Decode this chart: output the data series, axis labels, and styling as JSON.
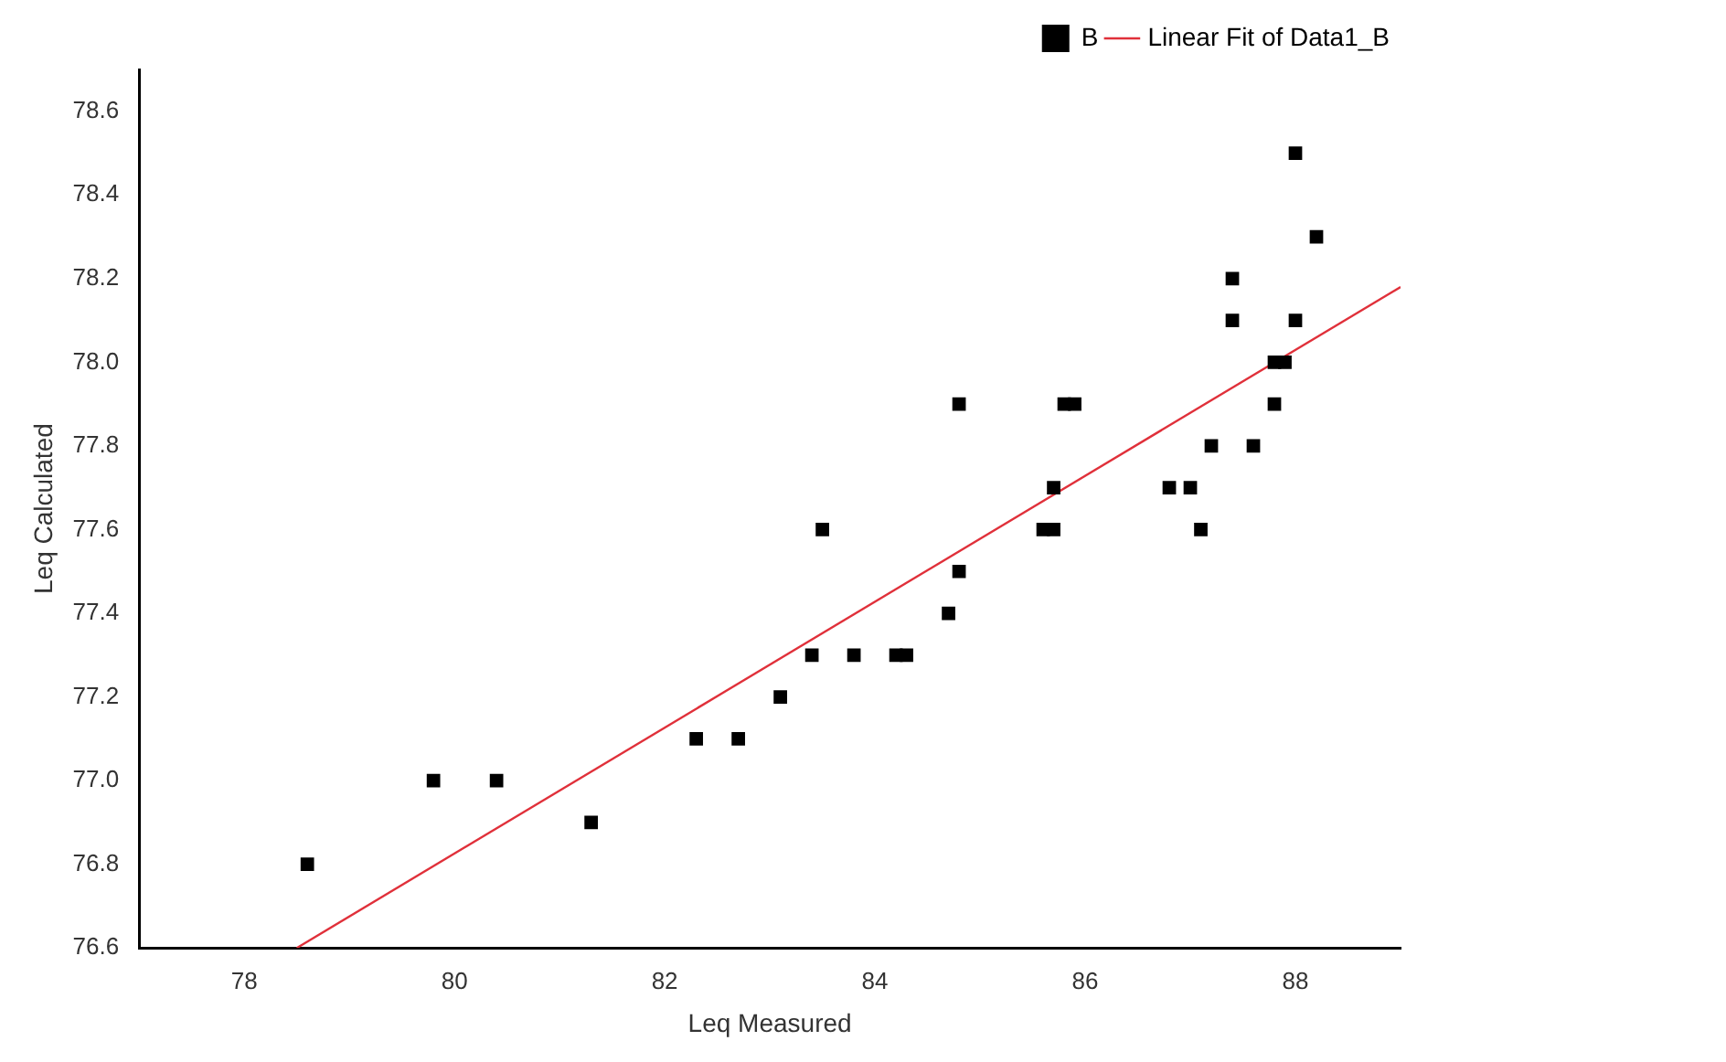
{
  "chart_data": {
    "type": "scatter",
    "xlabel": "Leq Measured",
    "ylabel": "Leq Calculated",
    "xlim": [
      77,
      89
    ],
    "xticks": [
      78,
      80,
      82,
      84,
      86,
      88
    ],
    "ylim": [
      76.6,
      78.7
    ],
    "yticks": [
      76.6,
      76.8,
      {
        "value": 77,
        "label": "77.0"
      },
      77.2,
      77.4,
      77.6,
      77.8,
      {
        "value": 78,
        "label": "78.0"
      },
      78.2,
      78.4,
      78.6
    ],
    "grid": false,
    "legend": "top right",
    "series": [
      {
        "name": "B",
        "color": "#000000",
        "marker": "square",
        "x": [
          78.6,
          79.8,
          80.4,
          81.3,
          82.3,
          82.7,
          83.1,
          83.4,
          83.5,
          83.8,
          84.2,
          84.3,
          84.7,
          84.8,
          84.8,
          85.6,
          85.7,
          85.7,
          85.8,
          85.9,
          86.8,
          87.0,
          87.1,
          87.2,
          87.4,
          87.4,
          87.6,
          87.8,
          87.8,
          87.9,
          88.0,
          88.0,
          88.2
        ],
        "values": [
          76.8,
          77.0,
          77.0,
          76.9,
          77.1,
          77.1,
          77.2,
          77.3,
          77.6,
          77.3,
          77.3,
          77.3,
          77.4,
          77.5,
          77.9,
          77.6,
          77.6,
          77.7,
          77.9,
          77.9,
          77.7,
          77.7,
          77.6,
          77.8,
          78.1,
          78.2,
          77.8,
          77.9,
          78.0,
          78.0,
          78.1,
          78.5,
          78.3
        ]
      },
      {
        "name": "Linear Fit of Data1_B",
        "type": "line",
        "marker": "none",
        "color": "#e0303a",
        "x": [
          78.5,
          89
        ],
        "values": [
          76.6,
          78.18
        ]
      }
    ]
  }
}
